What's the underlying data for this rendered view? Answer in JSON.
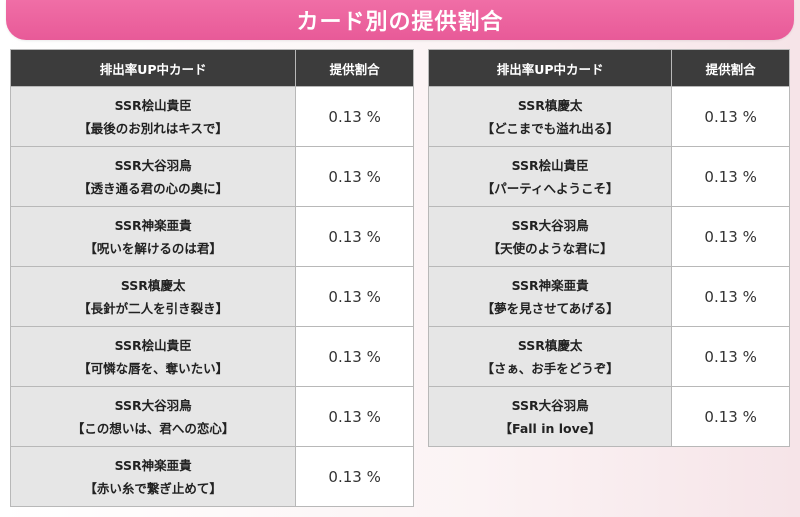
{
  "banner": {
    "title": "カード別の提供割合"
  },
  "left_table": {
    "header_card": "排出率UP中カード",
    "header_rate": "提供割合",
    "rows": [
      {
        "rarity_name": "SSR桧山貴臣",
        "title": "【最後のお別れはキスで】",
        "rate": "0.13 %"
      },
      {
        "rarity_name": "SSR大谷羽鳥",
        "title": "【透き通る君の心の奥に】",
        "rate": "0.13 %"
      },
      {
        "rarity_name": "SSR神楽亜貴",
        "title": "【呪いを解けるのは君】",
        "rate": "0.13 %"
      },
      {
        "rarity_name": "SSR槙慶太",
        "title": "【長針が二人を引き裂き】",
        "rate": "0.13 %"
      },
      {
        "rarity_name": "SSR桧山貴臣",
        "title": "【可憐な唇を、奪いたい】",
        "rate": "0.13 %"
      },
      {
        "rarity_name": "SSR大谷羽鳥",
        "title": "【この想いは、君への恋心】",
        "rate": "0.13 %"
      },
      {
        "rarity_name": "SSR神楽亜貴",
        "title": "【赤い糸で繋ぎ止めて】",
        "rate": "0.13 %"
      }
    ]
  },
  "right_table": {
    "header_card": "排出率UP中カード",
    "header_rate": "提供割合",
    "rows": [
      {
        "rarity_name": "SSR槙慶太",
        "title": "【どこまでも溢れ出る】",
        "rate": "0.13 %"
      },
      {
        "rarity_name": "SSR桧山貴臣",
        "title": "【パーティへようこそ】",
        "rate": "0.13 %"
      },
      {
        "rarity_name": "SSR大谷羽鳥",
        "title": "【天使のような君に】",
        "rate": "0.13 %"
      },
      {
        "rarity_name": "SSR神楽亜貴",
        "title": "【夢を見させてあげる】",
        "rate": "0.13 %"
      },
      {
        "rarity_name": "SSR槙慶太",
        "title": "【さぁ、お手をどうぞ】",
        "rate": "0.13 %"
      },
      {
        "rarity_name": "SSR大谷羽鳥",
        "title": "【Fall in love】",
        "rate": "0.13 %"
      }
    ]
  },
  "colors": {
    "banner_pink": "#e85a98",
    "header_dark": "#3c3c3c",
    "card_cell_gray": "#e6e6e6"
  }
}
